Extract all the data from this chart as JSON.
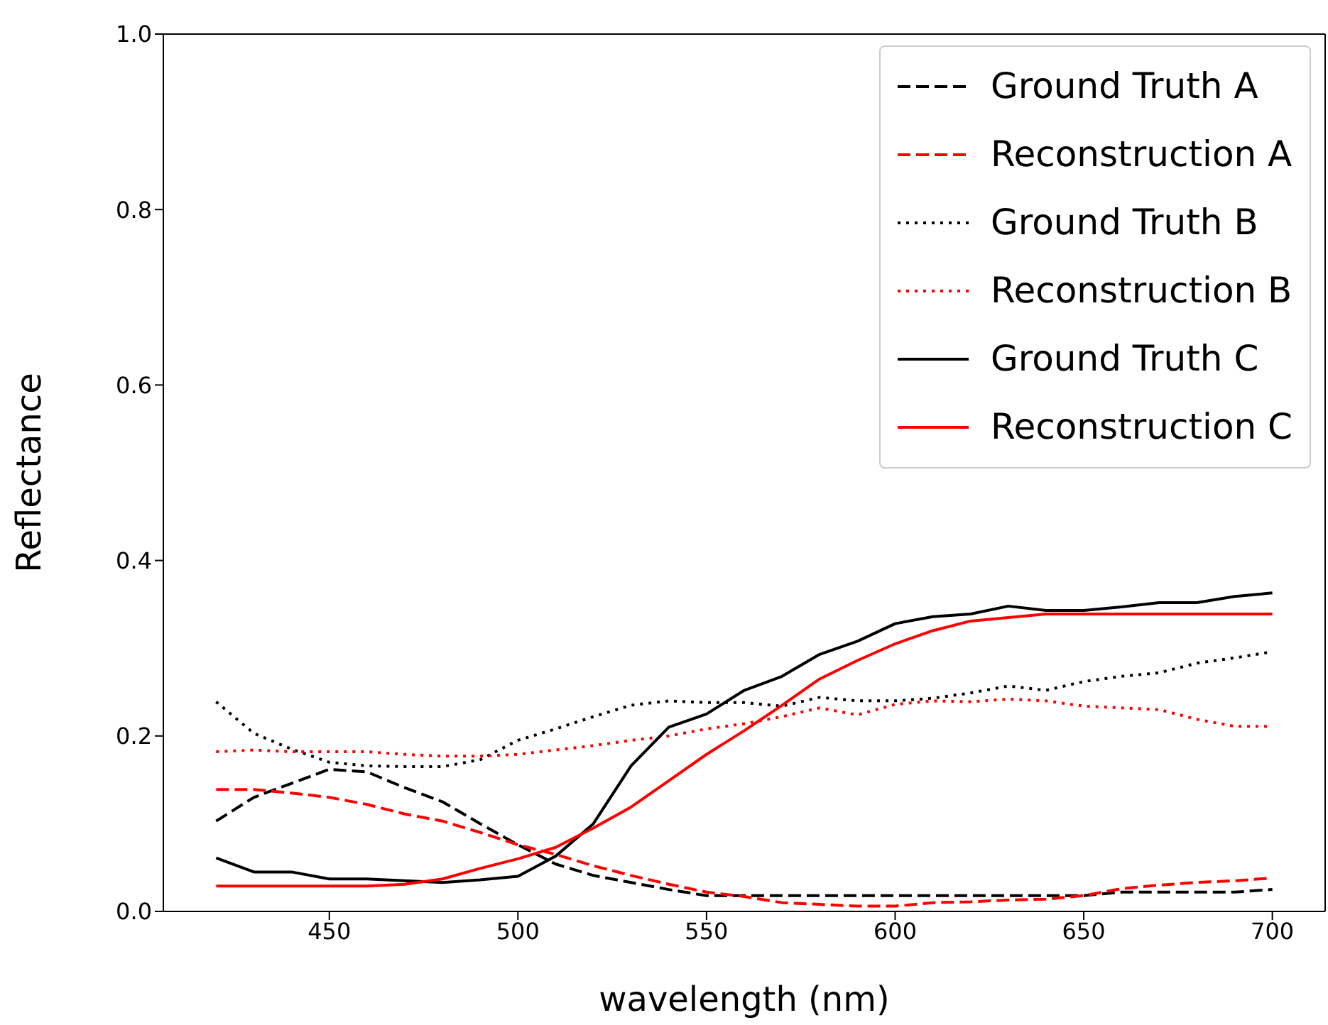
{
  "chart_data": {
    "type": "line",
    "xlabel": "wavelength (nm)",
    "ylabel": "Reflectance",
    "x": [
      420,
      430,
      440,
      450,
      460,
      470,
      480,
      490,
      500,
      510,
      520,
      530,
      540,
      550,
      560,
      570,
      580,
      590,
      600,
      610,
      620,
      630,
      640,
      650,
      660,
      670,
      680,
      690,
      700
    ],
    "xlim": [
      406,
      714
    ],
    "xticks": [
      450,
      500,
      550,
      600,
      650,
      700
    ],
    "ylim": [
      0,
      1
    ],
    "yticks": [
      {
        "value": 0,
        "label": "0.0"
      },
      0.2,
      0.4,
      0.6,
      0.8,
      {
        "value": 1,
        "label": "1.0"
      }
    ],
    "grid": false,
    "legend": "top right",
    "series": [
      {
        "name": "Ground Truth A",
        "color": "#000000",
        "line_style": "dashed",
        "values": [
          0.103,
          0.13,
          0.146,
          0.162,
          0.159,
          0.141,
          0.125,
          0.1,
          0.076,
          0.054,
          0.041,
          0.033,
          0.025,
          0.018,
          0.018,
          0.018,
          0.018,
          0.018,
          0.018,
          0.018,
          0.018,
          0.018,
          0.018,
          0.018,
          0.022,
          0.022,
          0.022,
          0.022,
          0.025
        ]
      },
      {
        "name": "Reconstruction A",
        "color": "#ff0000",
        "line_style": "dashed",
        "values": [
          0.139,
          0.139,
          0.135,
          0.13,
          0.122,
          0.111,
          0.103,
          0.09,
          0.076,
          0.065,
          0.052,
          0.041,
          0.031,
          0.022,
          0.017,
          0.01,
          0.008,
          0.006,
          0.006,
          0.01,
          0.011,
          0.013,
          0.014,
          0.018,
          0.026,
          0.03,
          0.033,
          0.035,
          0.038
        ]
      },
      {
        "name": "Ground Truth B",
        "color": "#000000",
        "line_style": "dotted",
        "values": [
          0.239,
          0.203,
          0.185,
          0.17,
          0.166,
          0.165,
          0.165,
          0.173,
          0.195,
          0.208,
          0.222,
          0.235,
          0.24,
          0.238,
          0.238,
          0.234,
          0.244,
          0.24,
          0.24,
          0.243,
          0.249,
          0.257,
          0.252,
          0.262,
          0.268,
          0.272,
          0.283,
          0.289,
          0.296
        ]
      },
      {
        "name": "Reconstruction B",
        "color": "#ff0000",
        "line_style": "dotted",
        "values": [
          0.182,
          0.184,
          0.182,
          0.182,
          0.182,
          0.179,
          0.177,
          0.177,
          0.179,
          0.184,
          0.189,
          0.195,
          0.2,
          0.208,
          0.214,
          0.222,
          0.232,
          0.224,
          0.236,
          0.24,
          0.239,
          0.242,
          0.24,
          0.234,
          0.232,
          0.23,
          0.219,
          0.211,
          0.211
        ]
      },
      {
        "name": "Ground Truth C",
        "color": "#000000",
        "line_style": "solid",
        "values": [
          0.061,
          0.045,
          0.045,
          0.037,
          0.037,
          0.035,
          0.033,
          0.036,
          0.04,
          0.063,
          0.1,
          0.166,
          0.21,
          0.225,
          0.252,
          0.268,
          0.293,
          0.308,
          0.328,
          0.336,
          0.339,
          0.348,
          0.343,
          0.343,
          0.347,
          0.352,
          0.352,
          0.359,
          0.363
        ]
      },
      {
        "name": "Reconstruction C",
        "color": "#ff0000",
        "line_style": "solid",
        "values": [
          0.029,
          0.029,
          0.029,
          0.029,
          0.029,
          0.031,
          0.037,
          0.049,
          0.06,
          0.073,
          0.095,
          0.119,
          0.149,
          0.179,
          0.206,
          0.235,
          0.265,
          0.286,
          0.305,
          0.32,
          0.331,
          0.335,
          0.339,
          0.339,
          0.339,
          0.339,
          0.339,
          0.339,
          0.339
        ]
      }
    ]
  }
}
